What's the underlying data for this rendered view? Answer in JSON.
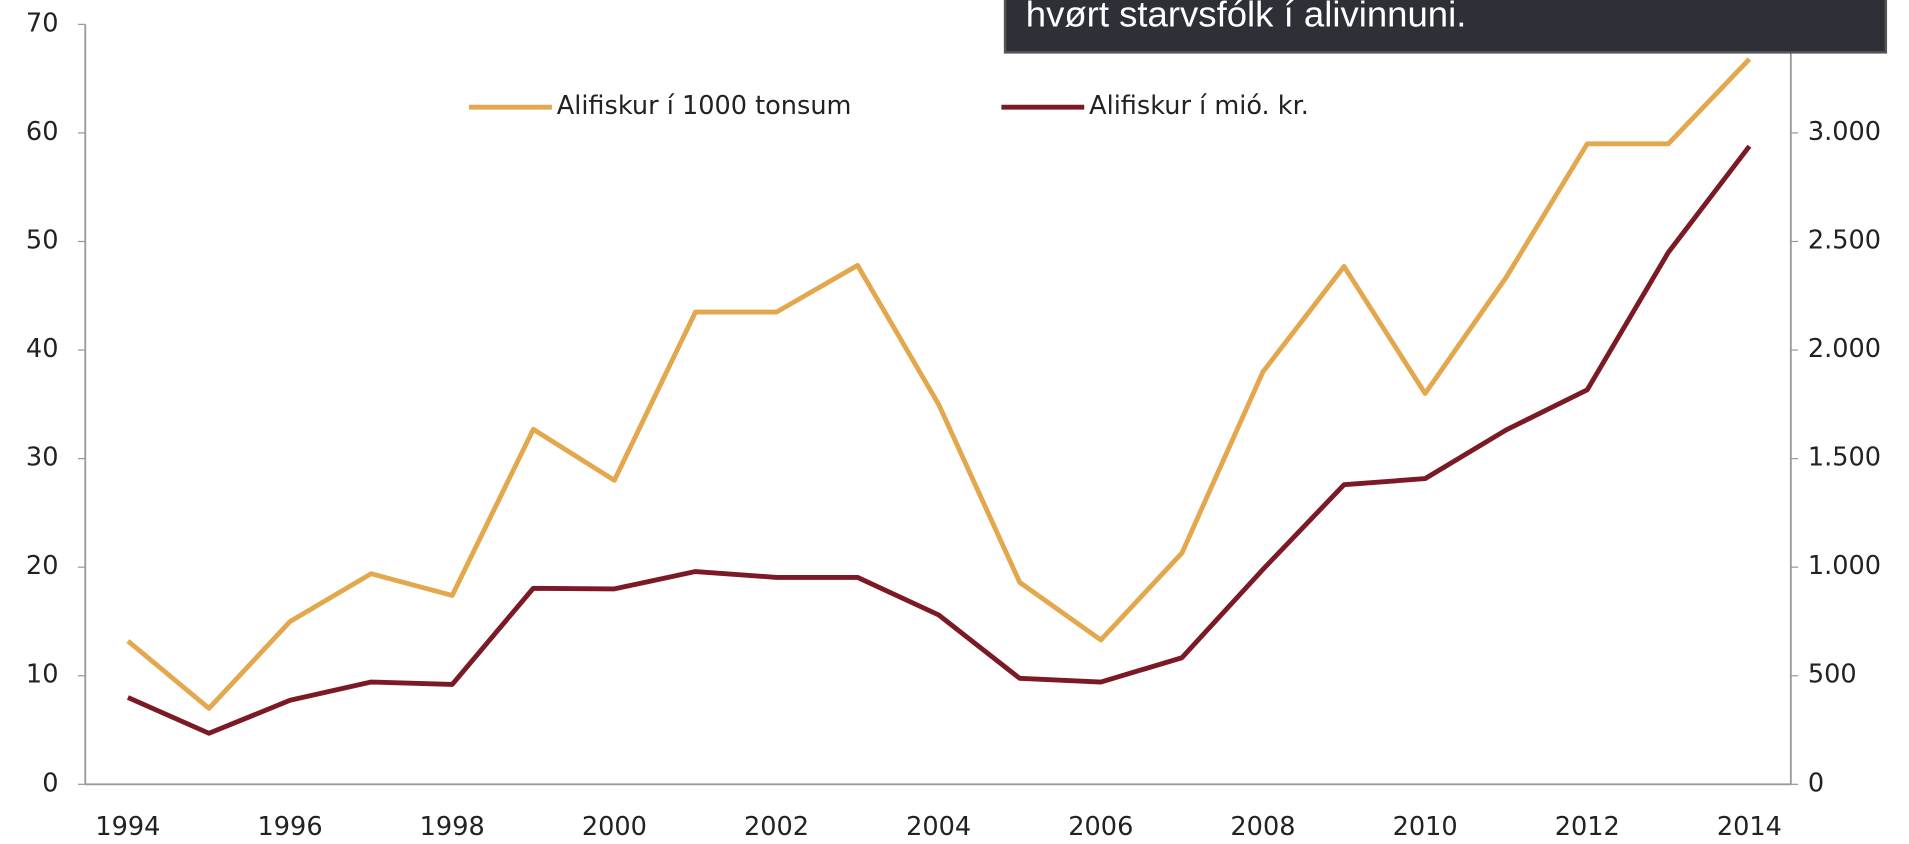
{
  "chart_data": {
    "type": "line",
    "annotation": "hvørt starvsfólk í alivinnuni.",
    "categories": [
      "1994",
      null,
      "1996",
      null,
      "1998",
      null,
      "2000",
      null,
      "2002",
      null,
      "2004",
      null,
      "2006",
      null,
      "2008",
      null,
      "2010",
      null,
      "2012",
      null,
      "2014"
    ],
    "series": [
      {
        "name": "Alifiskur í 1000 tonsum",
        "color": "#e3a84d",
        "axis": "y",
        "values": [
          13.2,
          7,
          15,
          19.4,
          17.4,
          32.7,
          28,
          43.5,
          43.5,
          47.8,
          35,
          18.6,
          13.3,
          21.3,
          38,
          47.7,
          36,
          46.7,
          59,
          59,
          66.8
        ]
      },
      {
        "name": "Alifiskur í mió. kr.",
        "color": "#7b1a24",
        "axis": "y2",
        "values": [
          400,
          235,
          387,
          471,
          460,
          903,
          900,
          980,
          953,
          953,
          780,
          488,
          471,
          583,
          990,
          1380,
          1408,
          1632,
          1817,
          2450,
          2939
        ]
      }
    ],
    "ylim": [
      0,
      70
    ],
    "yticks": [
      0,
      10,
      20,
      30,
      40,
      50,
      60,
      70
    ],
    "y2lim": [
      0,
      3500
    ],
    "y2ticks": [
      0,
      500,
      {
        "value": 1000,
        "label": "1.000"
      },
      {
        "value": 1500,
        "label": "1.500"
      },
      {
        "value": 2000,
        "label": "2.000"
      },
      {
        "value": 2500,
        "label": "2.500"
      },
      {
        "value": 3000,
        "label": "3.000"
      }
    ]
  }
}
